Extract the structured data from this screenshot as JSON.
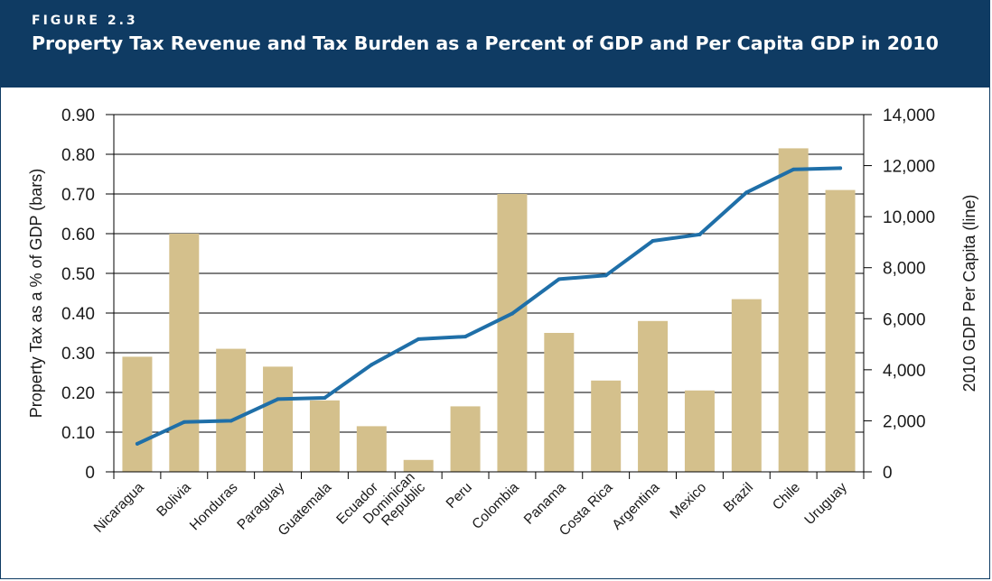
{
  "header": {
    "figure_label": "FIGURE 2.3",
    "title": "Property Tax Revenue and Tax Burden as a Percent of GDP and Per Capita GDP in 2010"
  },
  "colors": {
    "header_bg": "#0f3b63",
    "bar": "#d4c08c",
    "line": "#1f6fa8"
  },
  "chart_data": {
    "type": "bar",
    "categories": [
      "Nicaragua",
      "Bolivia",
      "Honduras",
      "Paraguay",
      "Guatemala",
      "Ecuador",
      "Dominican Republic",
      "Peru",
      "Colombia",
      "Panama",
      "Costa Rica",
      "Argentina",
      "Mexico",
      "Brazil",
      "Chile",
      "Uruguay"
    ],
    "category_lines": [
      [
        "Nicaragua"
      ],
      [
        "Bolivia"
      ],
      [
        "Honduras"
      ],
      [
        "Paraguay"
      ],
      [
        "Guatemala"
      ],
      [
        "Ecuador"
      ],
      [
        "Dominican",
        "Republic"
      ],
      [
        "Peru"
      ],
      [
        "Colombia"
      ],
      [
        "Panama"
      ],
      [
        "Costa Rica"
      ],
      [
        "Argentina"
      ],
      [
        "Mexico"
      ],
      [
        "Brazil"
      ],
      [
        "Chile"
      ],
      [
        "Uruguay"
      ]
    ],
    "series": [
      {
        "type": "bar",
        "axis": "left",
        "values": [
          0.29,
          0.6,
          0.31,
          0.265,
          0.18,
          0.115,
          0.03,
          0.165,
          0.7,
          0.35,
          0.23,
          0.38,
          0.205,
          0.435,
          0.815,
          0.71
        ]
      },
      {
        "type": "line",
        "axis": "right",
        "values": [
          1100,
          1950,
          2000,
          2850,
          2900,
          4200,
          5200,
          5300,
          6200,
          7550,
          7700,
          9050,
          9300,
          10950,
          11850,
          11900
        ]
      }
    ],
    "y_left": {
      "label": "Property Tax as a % of GDP (bars)",
      "min": 0,
      "max": 0.9,
      "ticks": [
        0,
        0.1,
        0.2,
        0.3,
        0.4,
        0.5,
        0.6,
        0.7,
        0.8,
        0.9
      ],
      "tick_labels": [
        "0",
        "0.10",
        "0.20",
        "0.30",
        "0.40",
        "0.50",
        "0.60",
        "0.70",
        "0.80",
        "0.90"
      ]
    },
    "y_right": {
      "label": "2010 GDP Per Capita (line)",
      "min": 0,
      "max": 14000,
      "ticks": [
        0,
        2000,
        4000,
        6000,
        8000,
        10000,
        12000,
        14000
      ],
      "tick_labels": [
        "0",
        "2,000",
        "4,000",
        "6,000",
        "8,000",
        "10,000",
        "12,000",
        "14,000"
      ]
    },
    "grid": true
  }
}
